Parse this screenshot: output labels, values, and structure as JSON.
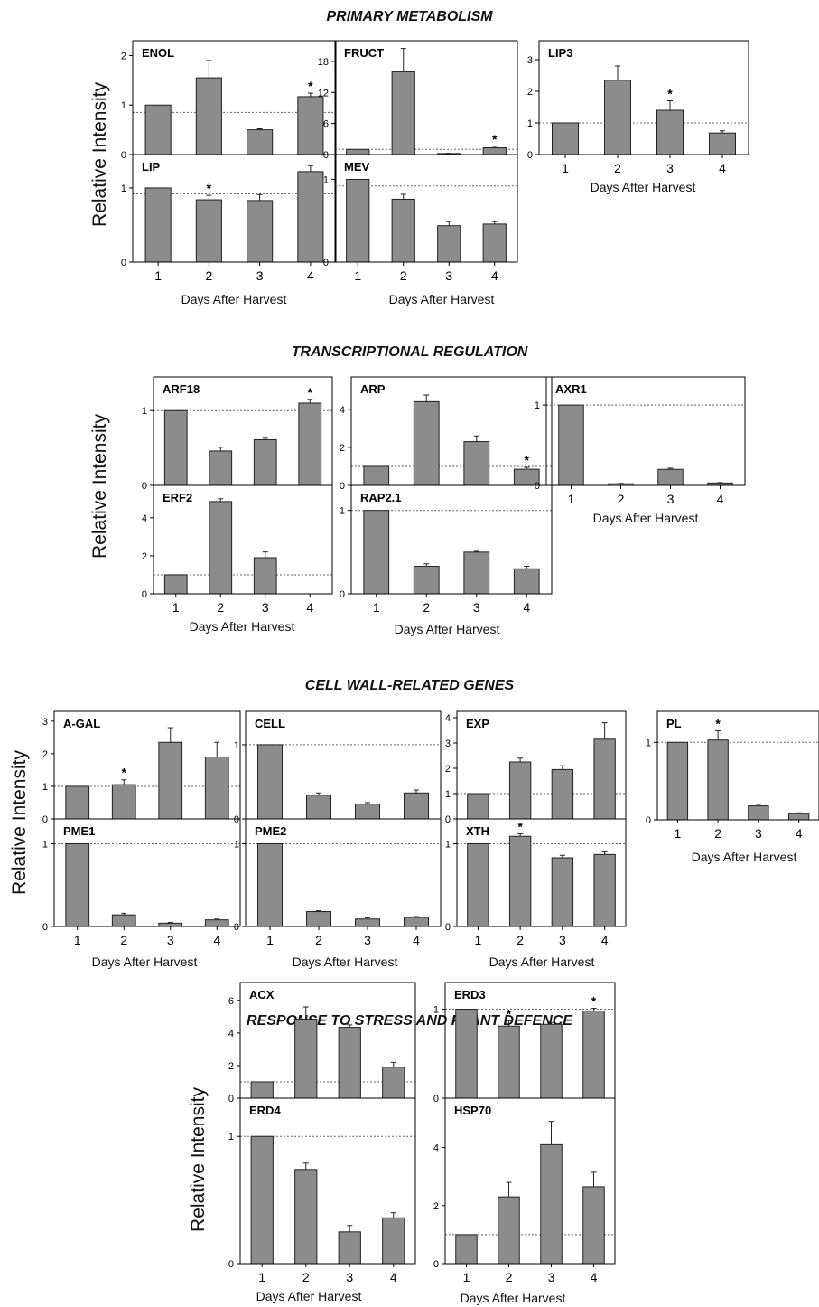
{
  "sections": [
    {
      "title": "PRIMARY METABOLISM"
    },
    {
      "title": "TRANSCRIPTIONAL REGULATION"
    },
    {
      "title": "CELL WALL-RELATED GENES"
    },
    {
      "title": "RESPONSE TO STRESS AND PLANT DEFENCE"
    }
  ],
  "common": {
    "ylabel": "Relative Intensity",
    "xlabel": "Days After Harvest",
    "x_categories": [
      "1",
      "2",
      "3",
      "4"
    ]
  },
  "colors": {
    "bar": "#8c8c8c",
    "reference_line": "#666666",
    "axis": "#000000"
  },
  "chart_data": [
    {
      "type": "bar",
      "section": "PRIMARY METABOLISM",
      "title": "ENOL",
      "categories": [
        "1",
        "2",
        "3",
        "4"
      ],
      "values": [
        1.0,
        1.55,
        0.5,
        1.17
      ],
      "errors": [
        0,
        0.35,
        0.02,
        0.07
      ],
      "significant": [
        false,
        false,
        false,
        true
      ],
      "reference": 0.85,
      "ylim": [
        0,
        2.3
      ],
      "yticks": [
        0,
        1,
        2
      ],
      "ylabel": "",
      "xlabel": ""
    },
    {
      "type": "bar",
      "section": "PRIMARY METABOLISM",
      "title": "FRUCT",
      "categories": [
        "1",
        "2",
        "3",
        "4"
      ],
      "values": [
        1.0,
        16.0,
        0.2,
        1.3
      ],
      "errors": [
        0,
        4.5,
        0.05,
        0.3
      ],
      "significant": [
        false,
        false,
        false,
        true
      ],
      "reference": 1.0,
      "ylim": [
        0,
        22
      ],
      "yticks": [
        0,
        6,
        12,
        18
      ],
      "ylabel": "",
      "xlabel": ""
    },
    {
      "type": "bar",
      "section": "PRIMARY METABOLISM",
      "title": "LIP3",
      "categories": [
        "1",
        "2",
        "3",
        "4"
      ],
      "values": [
        1.0,
        2.35,
        1.4,
        0.68
      ],
      "errors": [
        0,
        0.45,
        0.3,
        0.07
      ],
      "significant": [
        false,
        false,
        true,
        false
      ],
      "reference": 1.0,
      "ylim": [
        0,
        3.6
      ],
      "yticks": [
        0,
        1,
        2,
        3
      ],
      "ylabel": "",
      "xlabel": "Days After Harvest"
    },
    {
      "type": "bar",
      "section": "PRIMARY METABOLISM",
      "title": "LIP",
      "categories": [
        "1",
        "2",
        "3",
        "4"
      ],
      "values": [
        1.0,
        0.84,
        0.83,
        1.22
      ],
      "errors": [
        0,
        0.06,
        0.08,
        0.08
      ],
      "significant": [
        false,
        true,
        false,
        false
      ],
      "reference": 0.92,
      "ylim": [
        0,
        1.45
      ],
      "yticks": [
        0,
        1
      ],
      "ylabel": "",
      "xlabel": "Days After Harvest"
    },
    {
      "type": "bar",
      "section": "PRIMARY METABOLISM",
      "title": "MEV",
      "categories": [
        "1",
        "2",
        "3",
        "4"
      ],
      "values": [
        1.0,
        0.76,
        0.44,
        0.46
      ],
      "errors": [
        0,
        0.06,
        0.05,
        0.03
      ],
      "significant": [
        false,
        false,
        false,
        false
      ],
      "reference": 0.92,
      "ylim": [
        0,
        1.3
      ],
      "yticks": [
        0,
        1
      ],
      "ylabel": "",
      "xlabel": "Days After Harvest"
    },
    {
      "type": "bar",
      "section": "TRANSCRIPTIONAL REGULATION",
      "title": "ARF18",
      "categories": [
        "1",
        "2",
        "3",
        "4"
      ],
      "values": [
        1.0,
        0.46,
        0.61,
        1.1
      ],
      "errors": [
        0,
        0.05,
        0.02,
        0.05
      ],
      "significant": [
        false,
        false,
        false,
        true
      ],
      "reference": 1.0,
      "ylim": [
        0,
        1.45
      ],
      "yticks": [
        0,
        1
      ],
      "ylabel": "",
      "xlabel": ""
    },
    {
      "type": "bar",
      "section": "TRANSCRIPTIONAL REGULATION",
      "title": "ARP",
      "categories": [
        "1",
        "2",
        "3",
        "4"
      ],
      "values": [
        1.0,
        4.4,
        2.3,
        0.85
      ],
      "errors": [
        0,
        0.35,
        0.3,
        0.1
      ],
      "significant": [
        false,
        false,
        false,
        true
      ],
      "reference": 1.0,
      "ylim": [
        0,
        5.7
      ],
      "yticks": [
        0,
        2,
        4
      ],
      "ylabel": "",
      "xlabel": ""
    },
    {
      "type": "bar",
      "section": "TRANSCRIPTIONAL REGULATION",
      "title": "AXR1",
      "categories": [
        "1",
        "2",
        "3",
        "4"
      ],
      "values": [
        1.0,
        0.02,
        0.2,
        0.03
      ],
      "errors": [
        0,
        0.005,
        0.015,
        0.005
      ],
      "significant": [
        false,
        false,
        false,
        false
      ],
      "reference": 1.0,
      "ylim": [
        0,
        1.35
      ],
      "yticks": [
        0,
        1
      ],
      "ylabel": "",
      "xlabel": "Days After Harvest"
    },
    {
      "type": "bar",
      "section": "TRANSCRIPTIONAL REGULATION",
      "title": "ERF2",
      "categories": [
        "1",
        "2",
        "3",
        "4"
      ],
      "values": [
        1.0,
        4.85,
        1.9,
        0
      ],
      "errors": [
        0,
        0.15,
        0.3,
        0
      ],
      "significant": [
        false,
        false,
        false,
        false
      ],
      "reference": 1.0,
      "ylim": [
        0,
        5.7
      ],
      "yticks": [
        0,
        2,
        4
      ],
      "ylabel": "",
      "xlabel": "Days After Harvest"
    },
    {
      "type": "bar",
      "section": "TRANSCRIPTIONAL REGULATION",
      "title": "RAP2.1",
      "categories": [
        "1",
        "2",
        "3",
        "4"
      ],
      "values": [
        1.0,
        0.33,
        0.5,
        0.3
      ],
      "errors": [
        0,
        0.03,
        0.01,
        0.03
      ],
      "significant": [
        false,
        false,
        false,
        false
      ],
      "reference": 1.0,
      "ylim": [
        0,
        1.3
      ],
      "yticks": [
        0,
        1
      ],
      "ylabel": "",
      "xlabel": "Days After Harvest"
    },
    {
      "type": "bar",
      "section": "CELL WALL-RELATED GENES",
      "title": "A-GAL",
      "categories": [
        "1",
        "2",
        "3",
        "4"
      ],
      "values": [
        1.0,
        1.05,
        2.35,
        1.9
      ],
      "errors": [
        0,
        0.15,
        0.45,
        0.45
      ],
      "significant": [
        false,
        true,
        false,
        false
      ],
      "reference": 1.0,
      "ylim": [
        0,
        3.3
      ],
      "yticks": [
        0,
        1,
        2,
        3
      ],
      "ylabel": "",
      "xlabel": ""
    },
    {
      "type": "bar",
      "section": "CELL WALL-RELATED GENES",
      "title": "CELL",
      "categories": [
        "1",
        "2",
        "3",
        "4"
      ],
      "values": [
        1.0,
        0.32,
        0.2,
        0.35
      ],
      "errors": [
        0,
        0.03,
        0.02,
        0.04
      ],
      "significant": [
        false,
        false,
        false,
        false
      ],
      "reference": 1.0,
      "ylim": [
        0,
        1.45
      ],
      "yticks": [
        0,
        1
      ],
      "ylabel": "",
      "xlabel": ""
    },
    {
      "type": "bar",
      "section": "CELL WALL-RELATED GENES",
      "title": "EXP",
      "categories": [
        "1",
        "2",
        "3",
        "4"
      ],
      "values": [
        1.0,
        2.25,
        1.95,
        3.15
      ],
      "errors": [
        0,
        0.15,
        0.15,
        0.65
      ],
      "significant": [
        false,
        false,
        false,
        false
      ],
      "reference": 1.0,
      "ylim": [
        0,
        4.25
      ],
      "yticks": [
        0,
        1,
        2,
        3,
        4
      ],
      "ylabel": "",
      "xlabel": ""
    },
    {
      "type": "bar",
      "section": "CELL WALL-RELATED GENES",
      "title": "PL",
      "categories": [
        "1",
        "2",
        "3",
        "4"
      ],
      "values": [
        1.0,
        1.03,
        0.18,
        0.08
      ],
      "errors": [
        0,
        0.12,
        0.02,
        0.01
      ],
      "significant": [
        false,
        true,
        false,
        false
      ],
      "reference": 1.0,
      "ylim": [
        0,
        1.4
      ],
      "yticks": [
        0,
        1
      ],
      "ylabel": "",
      "xlabel": "Days After Harvest"
    },
    {
      "type": "bar",
      "section": "CELL WALL-RELATED GENES",
      "title": "PME1",
      "categories": [
        "1",
        "2",
        "3",
        "4"
      ],
      "values": [
        1.0,
        0.14,
        0.04,
        0.08
      ],
      "errors": [
        0,
        0.02,
        0.01,
        0.01
      ],
      "significant": [
        false,
        false,
        false,
        false
      ],
      "reference": 1.0,
      "ylim": [
        0,
        1.3
      ],
      "yticks": [
        0,
        1
      ],
      "ylabel": "",
      "xlabel": "Days After Harvest"
    },
    {
      "type": "bar",
      "section": "CELL WALL-RELATED GENES",
      "title": "PME2",
      "categories": [
        "1",
        "2",
        "3",
        "4"
      ],
      "values": [
        1.0,
        0.18,
        0.09,
        0.11
      ],
      "errors": [
        0,
        0.01,
        0.015,
        0.01
      ],
      "significant": [
        false,
        false,
        false,
        false
      ],
      "reference": 1.0,
      "ylim": [
        0,
        1.3
      ],
      "yticks": [
        0,
        1
      ],
      "ylabel": "",
      "xlabel": "Days After Harvest"
    },
    {
      "type": "bar",
      "section": "CELL WALL-RELATED GENES",
      "title": "XTH",
      "categories": [
        "1",
        "2",
        "3",
        "4"
      ],
      "values": [
        1.0,
        1.09,
        0.83,
        0.87
      ],
      "errors": [
        0,
        0.03,
        0.03,
        0.03
      ],
      "significant": [
        false,
        true,
        false,
        false
      ],
      "reference": 1.0,
      "ylim": [
        0,
        1.3
      ],
      "yticks": [
        0,
        1
      ],
      "ylabel": "",
      "xlabel": "Days After Harvest"
    },
    {
      "type": "bar",
      "section": "RESPONSE TO STRESS AND PLANT DEFENCE",
      "title": "ACX",
      "categories": [
        "1",
        "2",
        "3",
        "4"
      ],
      "values": [
        1.0,
        4.85,
        4.35,
        1.9
      ],
      "errors": [
        0,
        0.75,
        0.15,
        0.3
      ],
      "significant": [
        false,
        false,
        false,
        false
      ],
      "reference": 1.0,
      "ylim": [
        0,
        7.1
      ],
      "yticks": [
        0,
        2,
        4,
        6
      ],
      "ylabel": "",
      "xlabel": ""
    },
    {
      "type": "bar",
      "section": "RESPONSE TO STRESS AND PLANT DEFENCE",
      "title": "ERD3",
      "categories": [
        "1",
        "2",
        "3",
        "4"
      ],
      "values": [
        1.0,
        0.81,
        0.83,
        0.98
      ],
      "errors": [
        0,
        0.06,
        0.02,
        0.03
      ],
      "significant": [
        false,
        true,
        false,
        true
      ],
      "reference": 1.0,
      "ylim": [
        0,
        1.3
      ],
      "yticks": [
        0,
        1
      ],
      "ylabel": "",
      "xlabel": ""
    },
    {
      "type": "bar",
      "section": "RESPONSE TO STRESS AND PLANT DEFENCE",
      "title": "ERD4",
      "categories": [
        "1",
        "2",
        "3",
        "4"
      ],
      "values": [
        1.0,
        0.74,
        0.25,
        0.36
      ],
      "errors": [
        0,
        0.05,
        0.05,
        0.04
      ],
      "significant": [
        false,
        false,
        false,
        false
      ],
      "reference": 1.0,
      "ylim": [
        0,
        1.3
      ],
      "yticks": [
        0,
        1
      ],
      "ylabel": "",
      "xlabel": "Days After Harvest"
    },
    {
      "type": "bar",
      "section": "RESPONSE TO STRESS AND PLANT DEFENCE",
      "title": "HSP70",
      "categories": [
        "1",
        "2",
        "3",
        "4"
      ],
      "values": [
        1.0,
        2.3,
        4.1,
        2.65
      ],
      "errors": [
        0,
        0.5,
        0.8,
        0.5
      ],
      "significant": [
        false,
        false,
        false,
        false
      ],
      "reference": 1.0,
      "ylim": [
        0,
        5.7
      ],
      "yticks": [
        0,
        2,
        4
      ],
      "ylabel": "",
      "xlabel": "Days After Harvest"
    }
  ]
}
